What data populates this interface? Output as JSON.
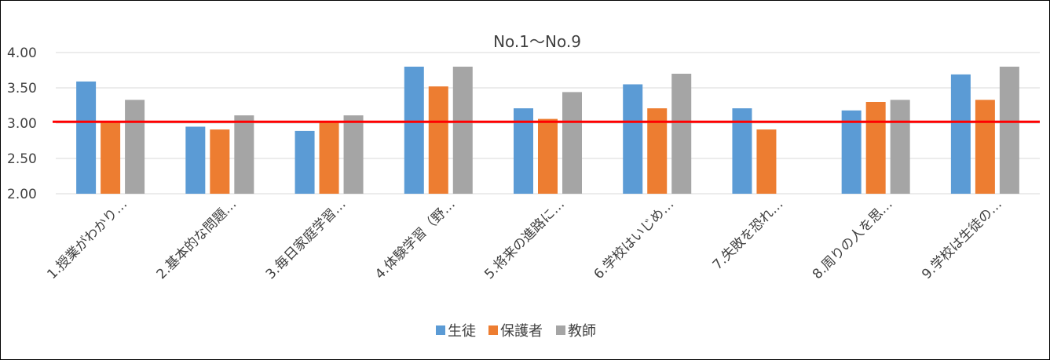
{
  "chart_data": {
    "type": "bar",
    "title": "No.1〜No.9",
    "categories": [
      "1.授業がわかり…",
      "2.基本的な問題…",
      "3.毎日家庭学習…",
      "4.体験学習（野…",
      "5.将来の進路に…",
      "6.学校はいじめ…",
      "7.失敗を恐れ…",
      "8.周りの人を思…",
      "9.学校は生徒の…"
    ],
    "series": [
      {
        "name": "生徒",
        "color": "#5B9BD5",
        "values": [
          3.59,
          2.95,
          2.89,
          3.8,
          3.21,
          3.55,
          3.21,
          3.18,
          3.69
        ]
      },
      {
        "name": "保護者",
        "color": "#ED7D31",
        "values": [
          3.02,
          2.91,
          3.02,
          3.52,
          3.06,
          3.21,
          2.91,
          3.3,
          3.33
        ]
      },
      {
        "name": "教師",
        "color": "#A5A5A5",
        "values": [
          3.33,
          3.11,
          3.11,
          3.8,
          3.44,
          3.7,
          null,
          3.33,
          3.8
        ]
      }
    ],
    "y_ticks": [
      "4.00",
      "3.50",
      "3.00",
      "2.50",
      "2.00"
    ],
    "ylim": [
      2.0,
      4.0
    ],
    "reference_line": {
      "value": 3.02,
      "color": "#FF0000"
    },
    "gridlines": true,
    "legend_position": "bottom"
  }
}
